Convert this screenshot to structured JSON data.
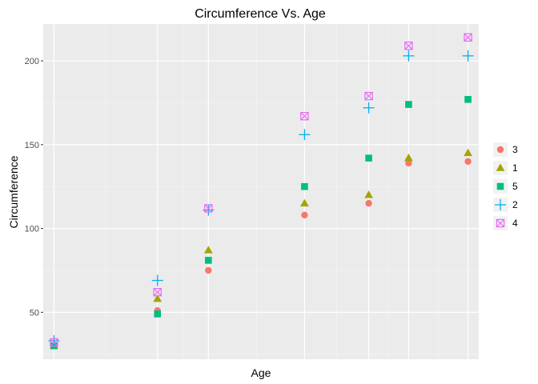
{
  "chart_data": {
    "type": "scatter",
    "title": "Circumference Vs. Age",
    "xlabel": "Age",
    "ylabel": "Circumference",
    "xlim": [
      80,
      1620
    ],
    "ylim": [
      22,
      222
    ],
    "x_ticks_labeled": false,
    "y_ticks": [
      50,
      100,
      150,
      200
    ],
    "grid": true,
    "legend_position": "right",
    "x": [
      118,
      484,
      664,
      1004,
      1231,
      1372,
      1582
    ],
    "series": [
      {
        "name": "3",
        "shape": "circle",
        "color": "#F8766D",
        "values": [
          30,
          51,
          75,
          108,
          115,
          139,
          140
        ]
      },
      {
        "name": "1",
        "shape": "triangle",
        "color": "#A3A500",
        "values": [
          30,
          58,
          87,
          115,
          120,
          142,
          145
        ]
      },
      {
        "name": "5",
        "shape": "square",
        "color": "#00BF7D",
        "values": [
          30,
          49,
          81,
          125,
          142,
          174,
          177
        ]
      },
      {
        "name": "2",
        "shape": "plus",
        "color": "#00B0F6",
        "values": [
          33,
          69,
          111,
          156,
          172,
          203,
          203
        ]
      },
      {
        "name": "4",
        "shape": "square-cross",
        "color": "#E76BF3",
        "values": [
          32,
          62,
          112,
          167,
          179,
          209,
          214
        ]
      }
    ]
  }
}
